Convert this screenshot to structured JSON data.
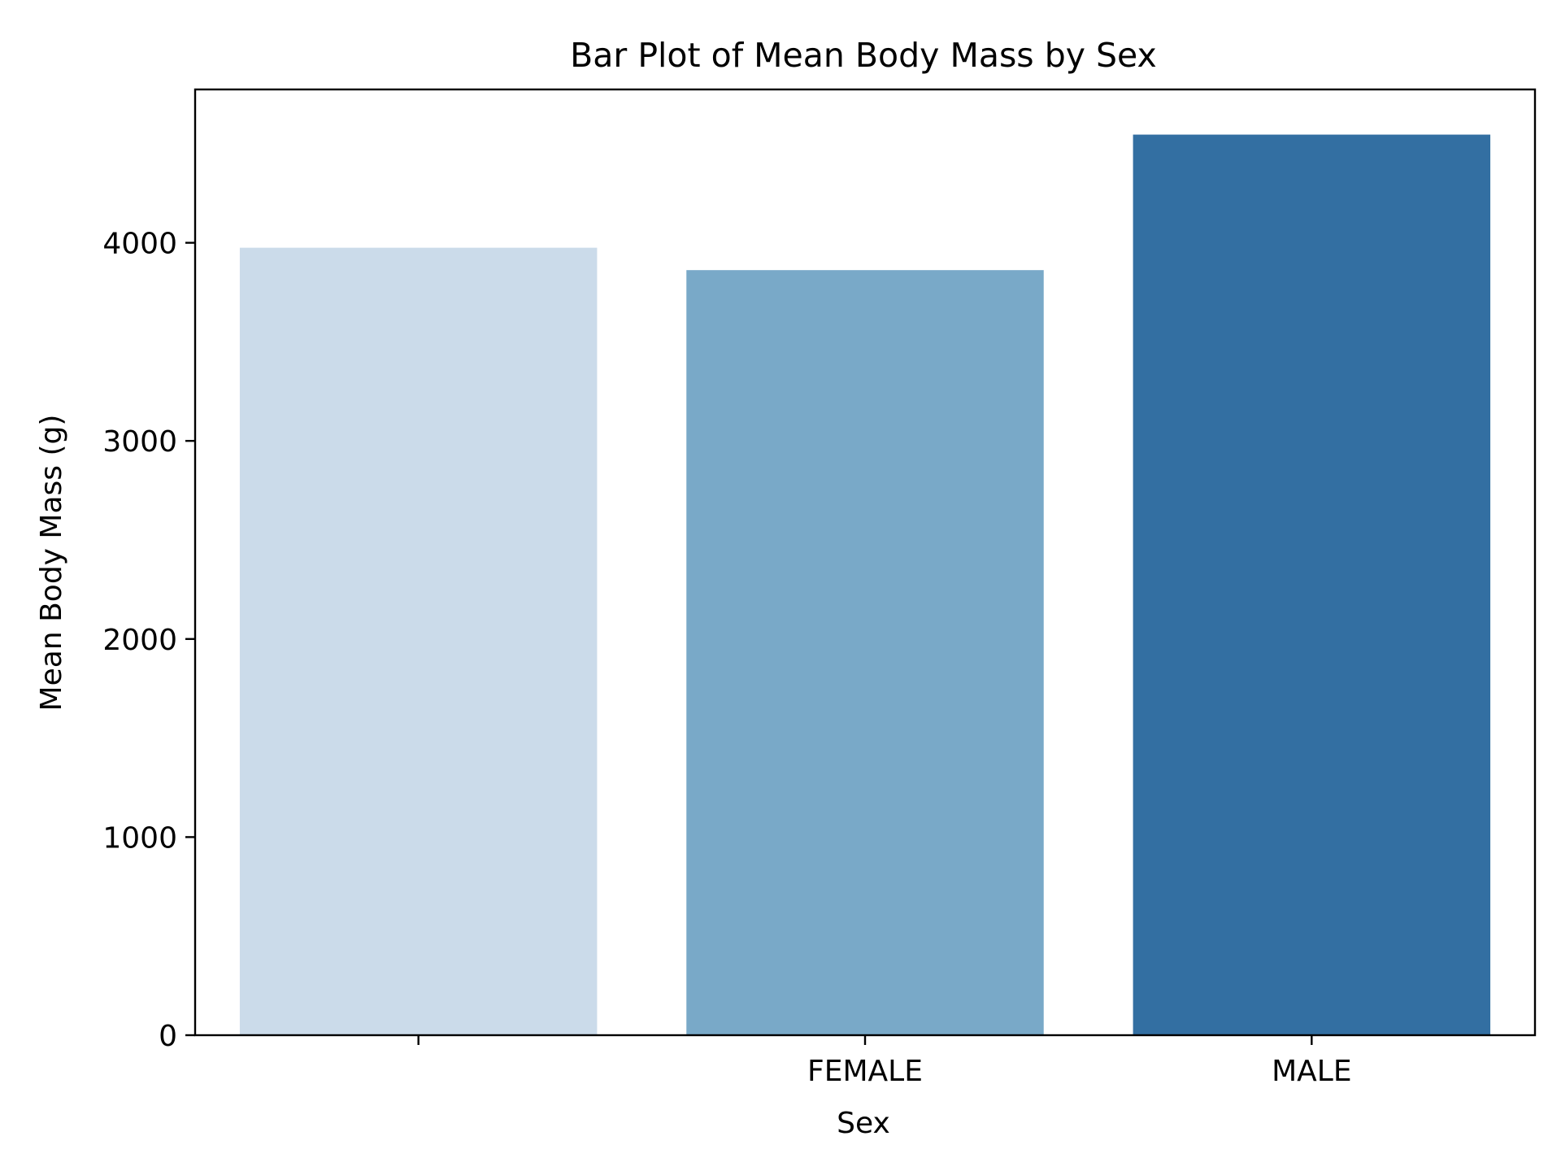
{
  "chart_data": {
    "type": "bar",
    "title": "Bar Plot of Mean Body Mass by Sex",
    "xlabel": "Sex",
    "ylabel": "Mean Body Mass (g)",
    "categories": [
      "",
      "FEMALE",
      "MALE"
    ],
    "values": [
      3975,
      3862,
      4546
    ],
    "colors": [
      "#cbdbea",
      "#79a9c8",
      "#336fa2"
    ],
    "ylim": [
      0,
      4774
    ],
    "yticks": [
      0,
      1000,
      2000,
      3000,
      4000
    ],
    "grid": false,
    "legend": "none"
  }
}
